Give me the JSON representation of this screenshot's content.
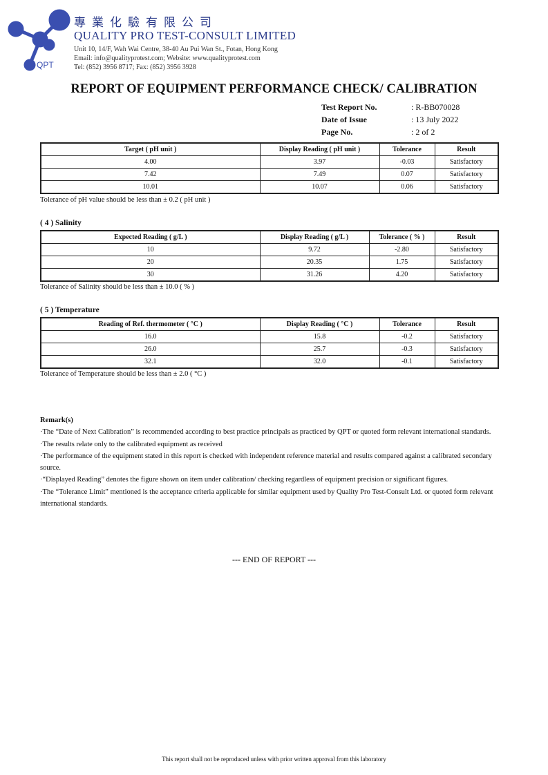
{
  "header": {
    "logo_text": "QPT",
    "chinese_name": "專業化驗有限公司",
    "company": "QUALITY PRO TEST-CONSULT LIMITED",
    "address": "Unit 10, 14/F, Wah Wai Centre, 38-40 Au Pui Wan St., Fotan, Hong Kong",
    "email_web": "Email: info@qualityprotest.com; Website: www.qualityprotest.com",
    "phone": "Tel: (852) 3956 8717; Fax: (852) 3956 3928",
    "logo_color": "#3a4fb0"
  },
  "title": "REPORT OF EQUIPMENT PERFORMANCE CHECK/ CALIBRATION",
  "meta": [
    {
      "label": "Test Report No.",
      "value": ": R-BB070028"
    },
    {
      "label": "Date of Issue",
      "value": ": 13 July 2022"
    },
    {
      "label": "Page No.",
      "value": ": 2 of 2"
    }
  ],
  "ph": {
    "headers": [
      "Target ( pH unit )",
      "Display Reading ( pH unit )",
      "Tolerance",
      "Result"
    ],
    "rows": [
      [
        "4.00",
        "3.97",
        "-0.03",
        "Satisfactory"
      ],
      [
        "7.42",
        "7.49",
        "0.07",
        "Satisfactory"
      ],
      [
        "10.01",
        "10.07",
        "0.06",
        "Satisfactory"
      ]
    ],
    "note": "Tolerance of pH value should be less than ± 0.2 ( pH unit )"
  },
  "salinity": {
    "title": "( 4 )  Salinity",
    "headers": [
      "Expected Reading ( g/L )",
      "Display Reading ( g/L )",
      "Tolerance ( % )",
      "Result"
    ],
    "rows": [
      [
        "10",
        "9.72",
        "-2.80",
        "Satisfactory"
      ],
      [
        "20",
        "20.35",
        "1.75",
        "Satisfactory"
      ],
      [
        "30",
        "31.26",
        "4.20",
        "Satisfactory"
      ]
    ],
    "note": "Tolerance of Salinity should be less than ± 10.0 ( % )"
  },
  "temperature": {
    "title": "( 5 )  Temperature",
    "headers": [
      "Reading of Ref. thermometer ( °C )",
      "Display Reading ( °C )",
      "Tolerance",
      "Result"
    ],
    "rows": [
      [
        "16.0",
        "15.8",
        "-0.2",
        "Satisfactory"
      ],
      [
        "26.0",
        "25.7",
        "-0.3",
        "Satisfactory"
      ],
      [
        "32.1",
        "32.0",
        "-0.1",
        "Satisfactory"
      ]
    ],
    "note": "Tolerance of Temperature should be less than ± 2.0 ( °C )"
  },
  "remarks": {
    "title": "Remark(s)",
    "items": [
      "·The “Date of Next Calibration” is recommended according to best practice principals as practiced by QPT or quoted form relevant international standards.",
      "·The results relate only to the calibrated equipment as received",
      "·The performance of the equipment stated in this report is checked with independent reference material and results compared against a calibrated secondary source.",
      "·“Displayed Reading” denotes the figure shown on item under calibration/ checking regardless of equipment precision or significant figures.",
      "·The “Tolerance Limit” mentioned is the acceptance criteria applicable for similar equipment used by Quality Pro Test-Consult Ltd. or quoted form relevant international standards."
    ]
  },
  "end": "--- END OF REPORT ---",
  "footer": "This report shall not be reproduced unless with prior written approval from this laboratory"
}
